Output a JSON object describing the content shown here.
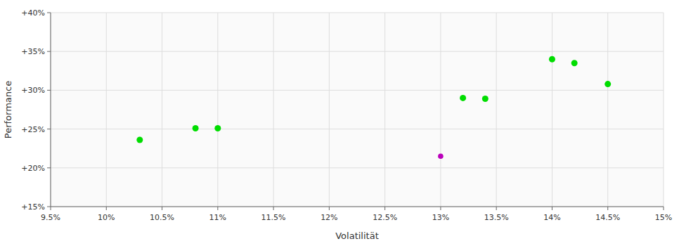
{
  "chart_data": {
    "type": "scatter",
    "xlabel": "Volatilität",
    "ylabel": "Performance",
    "xlim": [
      0.095,
      0.15
    ],
    "ylim": [
      0.15,
      0.4
    ],
    "xticks": [
      {
        "value": 0.095,
        "label": "9.5%"
      },
      {
        "value": 0.1,
        "label": "10%"
      },
      {
        "value": 0.105,
        "label": "10.5%"
      },
      {
        "value": 0.11,
        "label": "11%"
      },
      {
        "value": 0.115,
        "label": "11.5%"
      },
      {
        "value": 0.12,
        "label": "12%"
      },
      {
        "value": 0.125,
        "label": "12.5%"
      },
      {
        "value": 0.13,
        "label": "13%"
      },
      {
        "value": 0.135,
        "label": "13.5%"
      },
      {
        "value": 0.14,
        "label": "14%"
      },
      {
        "value": 0.145,
        "label": "14.5%"
      },
      {
        "value": 0.15,
        "label": "15%"
      }
    ],
    "yticks": [
      {
        "value": 0.15,
        "label": "+15%"
      },
      {
        "value": 0.2,
        "label": "+20%"
      },
      {
        "value": 0.25,
        "label": "+25%"
      },
      {
        "value": 0.3,
        "label": "+30%"
      },
      {
        "value": 0.35,
        "label": "+35%"
      },
      {
        "value": 0.4,
        "label": "+40%"
      }
    ],
    "grid": true,
    "series": [
      {
        "color": "#00dd00",
        "x": [
          0.103,
          0.108,
          0.11,
          0.132,
          0.134,
          0.14,
          0.142,
          0.145
        ],
        "values": [
          0.236,
          0.251,
          0.251,
          0.29,
          0.289,
          0.34,
          0.335,
          0.308
        ]
      },
      {
        "color": "#bb00bb",
        "x": [
          0.13
        ],
        "values": [
          0.215
        ]
      }
    ]
  }
}
